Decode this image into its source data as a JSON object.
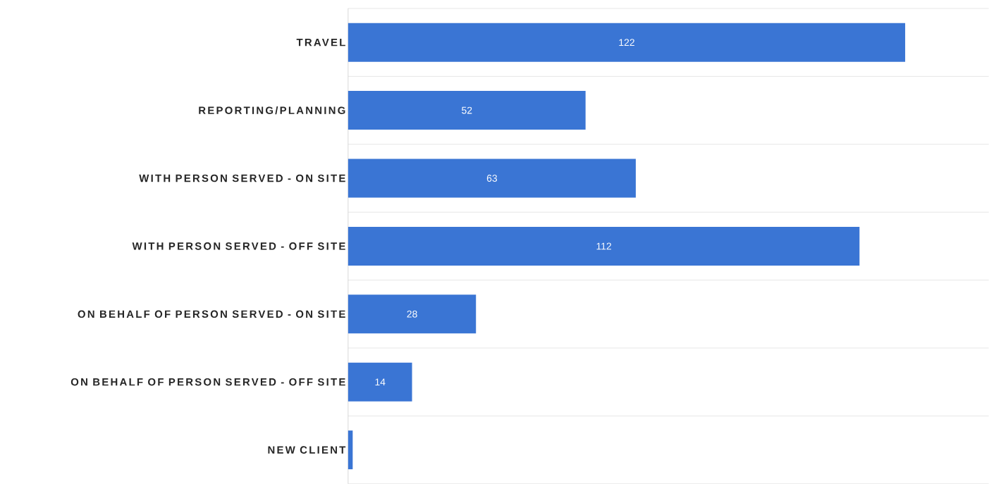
{
  "chart_data": {
    "type": "bar",
    "orientation": "horizontal",
    "categories": [
      "TRAVEL",
      "REPORTING/PLANNING",
      "WITH PERSON SERVED - ON SITE",
      "WITH PERSON SERVED - OFF SITE",
      "ON BEHALF OF PERSON SERVED - ON SITE",
      "ON BEHALF OF PERSON SERVED - OFF SITE",
      "NEW CLIENT"
    ],
    "values": [
      122,
      52,
      63,
      112,
      28,
      14,
      1
    ],
    "value_labels": [
      "122",
      "52",
      "63",
      "112",
      "28",
      "14",
      null
    ],
    "color": "#3a75d4",
    "grid": "y"
  }
}
